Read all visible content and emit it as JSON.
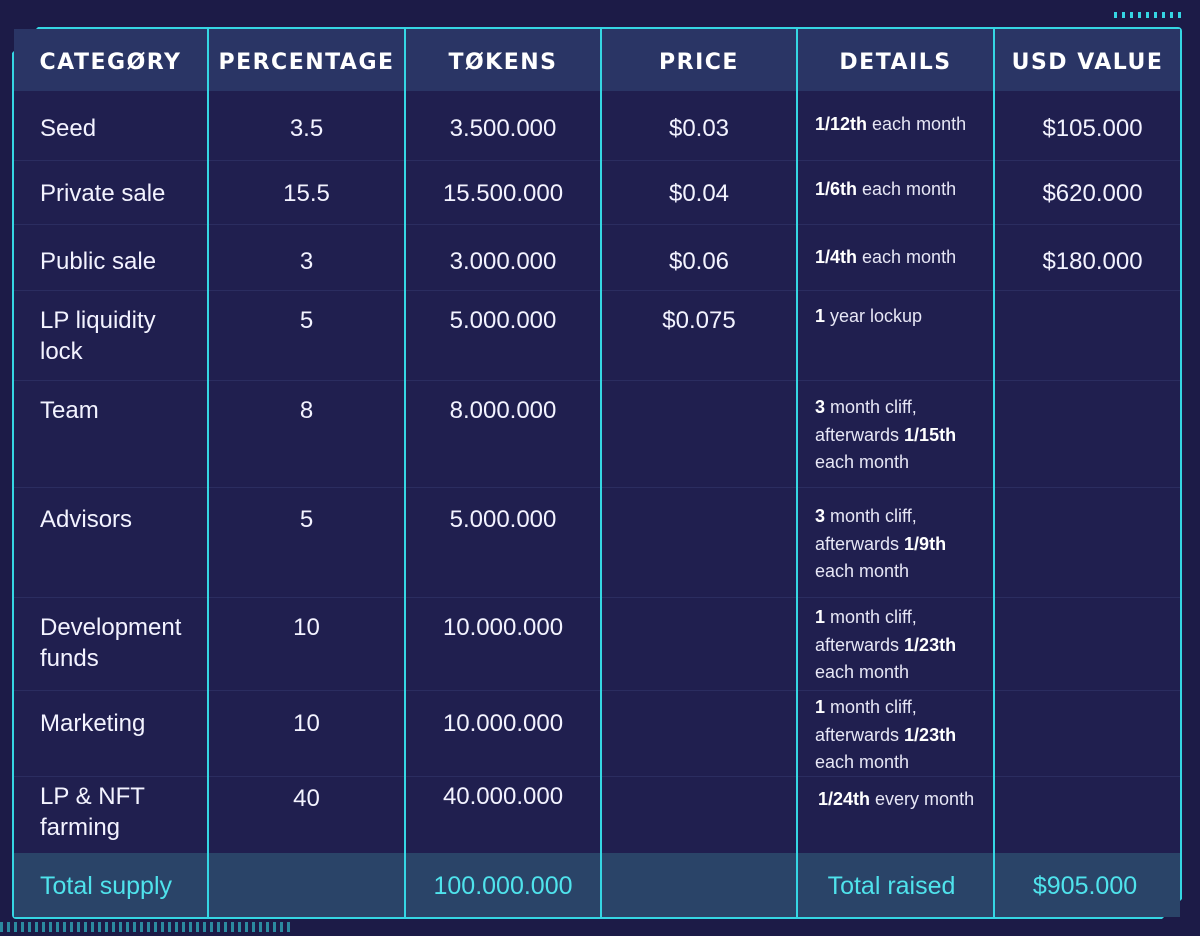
{
  "headers": {
    "category": "CATEGØRY",
    "percentage": "PERCENTAGE",
    "tokens": "TØKENS",
    "price": "PRICE",
    "details": "DETAILS",
    "usd_value": "USD VALUE"
  },
  "rows": [
    {
      "category": "Seed",
      "percentage": "3.5",
      "tokens": "3.500.000",
      "price": "$0.03",
      "details_bold": "1/12th",
      "details_text": " each month",
      "usd": "$105.000"
    },
    {
      "category": "Private sale",
      "percentage": "15.5",
      "tokens": "15.500.000",
      "price": "$0.04",
      "details_bold": "1/6th",
      "details_text": " each month",
      "usd": "$620.000"
    },
    {
      "category": "Public sale",
      "percentage": "3",
      "tokens": "3.000.000",
      "price": "$0.06",
      "details_bold": "1/4th",
      "details_text": " each month",
      "usd": "$180.000"
    },
    {
      "category_line1": "LP liquidity",
      "category_line2": "lock",
      "percentage": "5",
      "tokens": "5.000.000",
      "price": "$0.075",
      "details_bold": "1",
      "details_text": " year lockup",
      "usd": ""
    },
    {
      "category": "Team",
      "percentage": "8",
      "tokens": "8.000.000",
      "price": "",
      "details_bold1": "3",
      "details_text1": " month cliff,",
      "details_text2": "afterwards ",
      "details_bold2": "1/15th",
      "details_text3": "each month",
      "usd": ""
    },
    {
      "category": "Advisors",
      "percentage": "5",
      "tokens": "5.000.000",
      "price": "",
      "details_bold1": "3",
      "details_text1": " month cliff,",
      "details_text2": "afterwards ",
      "details_bold2": "1/9th",
      "details_text3": "each month",
      "usd": ""
    },
    {
      "category_line1": "Development",
      "category_line2": "funds",
      "percentage": "10",
      "tokens": "10.000.000",
      "price": "",
      "details_bold1": "1",
      "details_text1": " month cliff,",
      "details_text2": "afterwards ",
      "details_bold2": "1/23th",
      "details_text3": "each month",
      "usd": ""
    },
    {
      "category": "Marketing",
      "percentage": "10",
      "tokens": "10.000.000",
      "price": "",
      "details_bold1": "1",
      "details_text1": " month cliff,",
      "details_text2": "afterwards ",
      "details_bold2": "1/23th",
      "details_text3": "each month",
      "usd": ""
    },
    {
      "category_line1": "LP & NFT",
      "category_line2": "farming",
      "percentage": "40",
      "tokens": "40.000.000",
      "price": "",
      "details_bold": "1/24th",
      "details_text": " every month",
      "usd": ""
    }
  ],
  "totals": {
    "supply_label": "Total supply",
    "supply_value": "100.000.000",
    "raised_label": "Total raised",
    "raised_value": "$905.000"
  },
  "colors": {
    "background": "#1c1b47",
    "accent": "#35d6e3",
    "header_band": "#2a3565",
    "footer_band": "#2a4468",
    "total_text": "#4fe3ec"
  }
}
